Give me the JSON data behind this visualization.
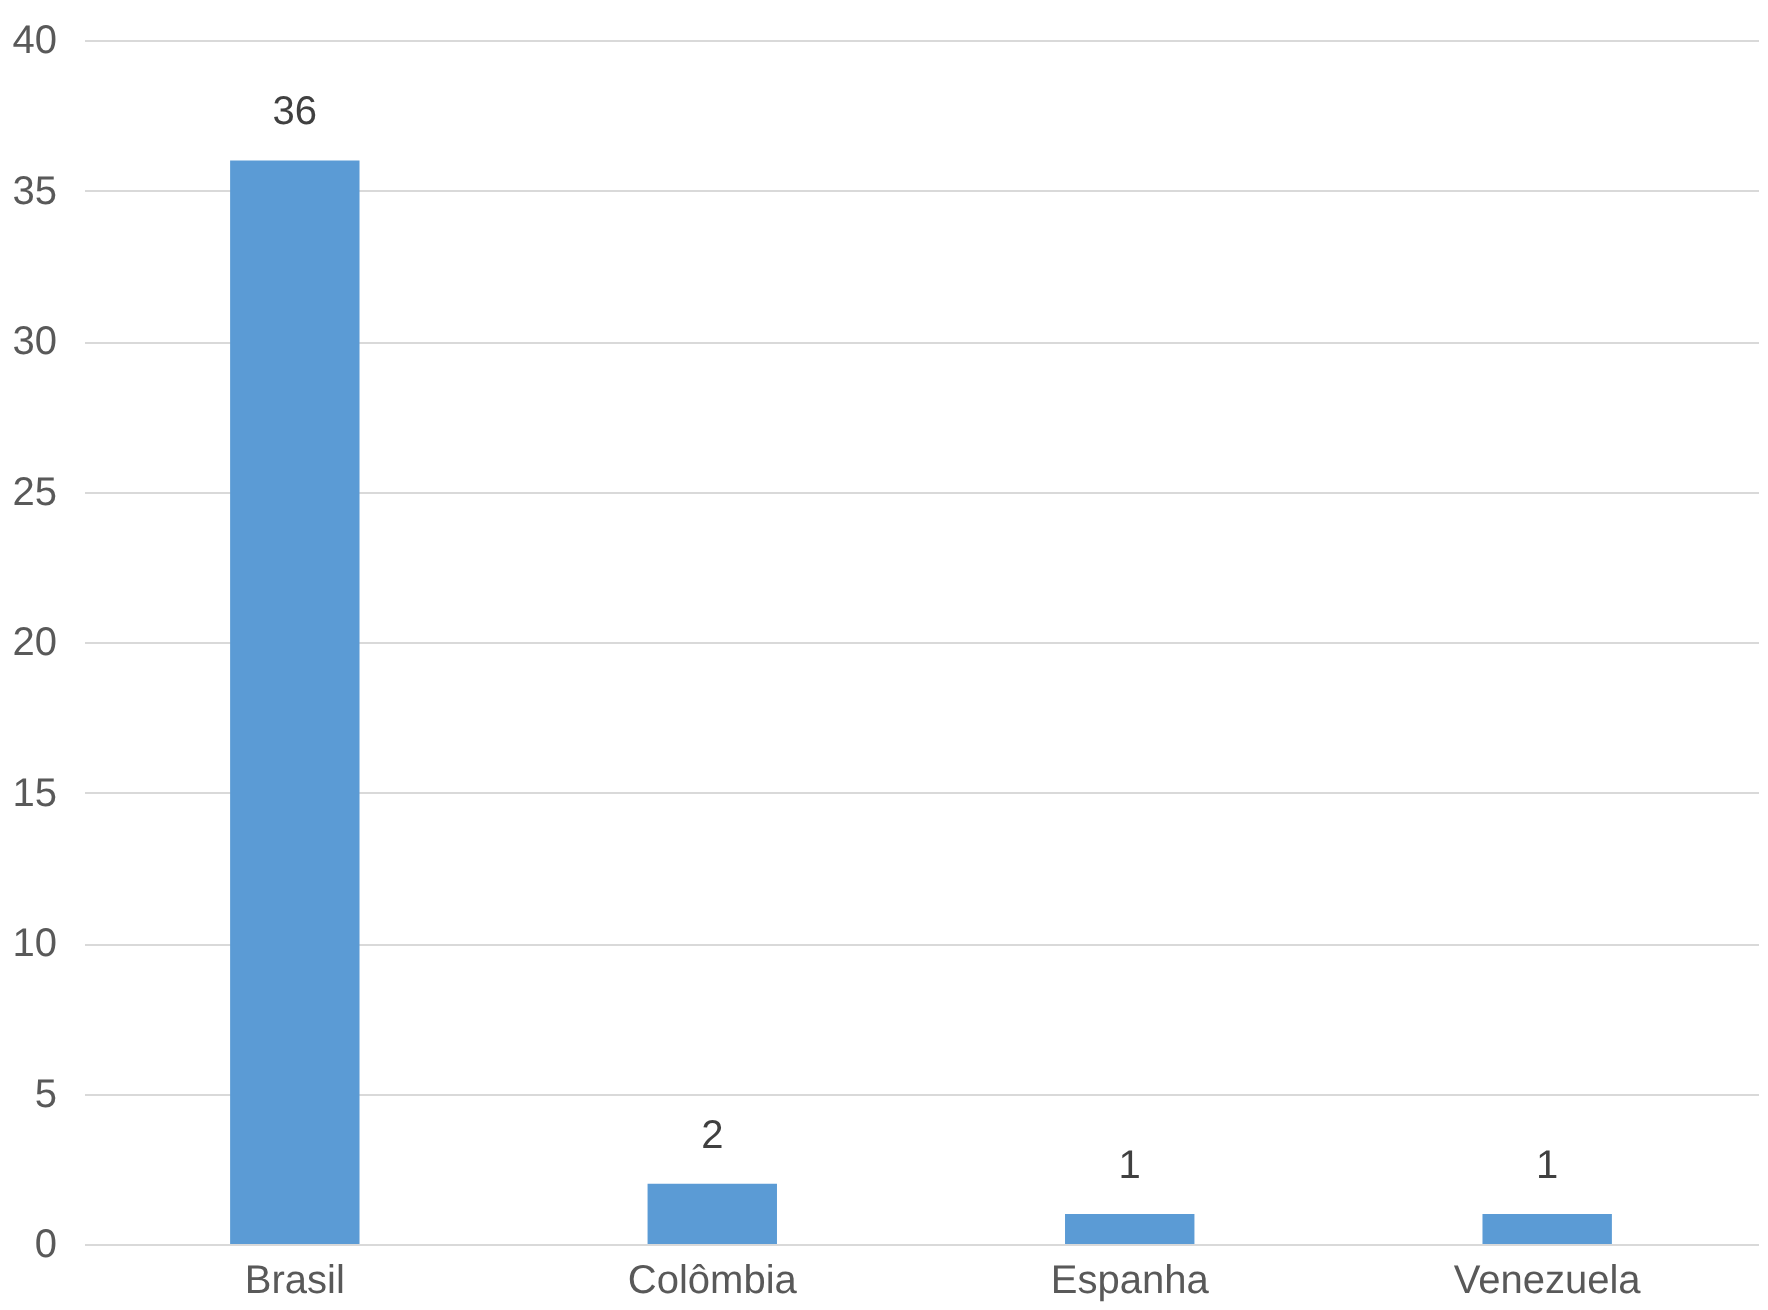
{
  "chart_data": {
    "type": "bar",
    "categories": [
      "Brasil",
      "Colômbia",
      "Espanha",
      "Venezuela"
    ],
    "values": [
      36,
      2,
      1,
      1
    ],
    "color": "#5b9bd5",
    "ylim": [
      0,
      40
    ],
    "yticks": [
      0,
      5,
      10,
      15,
      20,
      25,
      30,
      35,
      40
    ],
    "grid": "y",
    "data_labels": true
  }
}
